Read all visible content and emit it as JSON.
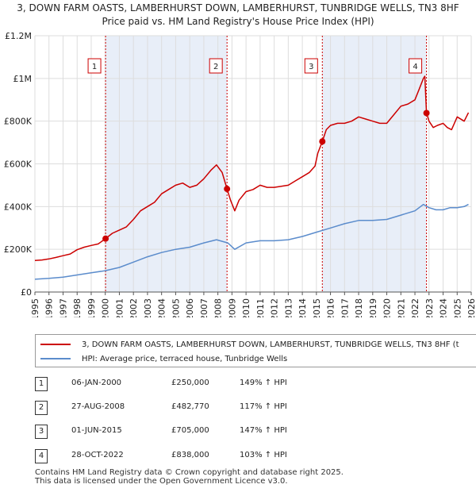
{
  "chart_data": {
    "type": "line",
    "title": "3, DOWN FARM OASTS, LAMBERHURST DOWN, LAMBERHURST, TUNBRIDGE WELLS, TN3 8HF",
    "subtitle": "Price paid vs. HM Land Registry's House Price Index (HPI)",
    "xlabel": "",
    "ylabel": "",
    "xlim": [
      1995,
      2026
    ],
    "ylim": [
      0,
      1200000
    ],
    "x_ticks": [
      1995,
      1996,
      1997,
      1998,
      1999,
      2000,
      2001,
      2002,
      2003,
      2004,
      2005,
      2006,
      2007,
      2008,
      2009,
      2010,
      2011,
      2012,
      2013,
      2014,
      2015,
      2016,
      2017,
      2018,
      2019,
      2020,
      2021,
      2022,
      2023,
      2024,
      2025,
      2026
    ],
    "y_ticks": [
      {
        "value": 0,
        "label": "£0"
      },
      {
        "value": 200000,
        "label": "£200K"
      },
      {
        "value": 400000,
        "label": "£400K"
      },
      {
        "value": 600000,
        "label": "£600K"
      },
      {
        "value": 800000,
        "label": "£800K"
      },
      {
        "value": 1000000,
        "label": "£1M"
      },
      {
        "value": 1200000,
        "label": "£1.2M"
      }
    ],
    "series": [
      {
        "name": "3, DOWN FARM OASTS, LAMBERHURST DOWN, LAMBERHURST, TUNBRIDGE WELLS, TN3 8HF (t",
        "color": "#cc0000",
        "x": [
          1995.0,
          1995.5,
          1996.0,
          1996.5,
          1997.0,
          1997.5,
          1998.0,
          1998.5,
          1999.0,
          1999.5,
          2000.02,
          2000.5,
          2001.0,
          2001.5,
          2002.0,
          2002.5,
          2003.0,
          2003.5,
          2004.0,
          2004.5,
          2005.0,
          2005.5,
          2006.0,
          2006.5,
          2007.0,
          2007.5,
          2007.9,
          2008.3,
          2008.65,
          2008.9,
          2009.2,
          2009.5,
          2010.0,
          2010.5,
          2011.0,
          2011.5,
          2012.0,
          2012.5,
          2013.0,
          2013.5,
          2014.0,
          2014.5,
          2014.9,
          2015.1,
          2015.42,
          2015.7,
          2016.0,
          2016.5,
          2017.0,
          2017.5,
          2018.0,
          2018.5,
          2019.0,
          2019.5,
          2020.0,
          2020.5,
          2021.0,
          2021.5,
          2022.0,
          2022.3,
          2022.6,
          2022.7,
          2022.82,
          2023.0,
          2023.3,
          2023.6,
          2024.0,
          2024.3,
          2024.6,
          2025.0,
          2025.5,
          2025.8
        ],
        "y": [
          148000,
          150000,
          155000,
          162000,
          170000,
          178000,
          198000,
          210000,
          218000,
          225000,
          250000,
          275000,
          290000,
          305000,
          340000,
          380000,
          400000,
          420000,
          460000,
          480000,
          500000,
          510000,
          490000,
          500000,
          530000,
          570000,
          595000,
          560000,
          482770,
          430000,
          380000,
          430000,
          470000,
          480000,
          500000,
          490000,
          490000,
          495000,
          500000,
          520000,
          540000,
          560000,
          590000,
          650000,
          705000,
          760000,
          780000,
          790000,
          790000,
          800000,
          820000,
          810000,
          800000,
          790000,
          790000,
          830000,
          870000,
          880000,
          900000,
          950000,
          1000000,
          1010000,
          838000,
          800000,
          770000,
          780000,
          790000,
          770000,
          760000,
          820000,
          800000,
          840000
        ]
      },
      {
        "name": "HPI: Average price, terraced house, Tunbridge Wells",
        "color": "#5b8ccc",
        "x": [
          1995.0,
          1996.0,
          1997.0,
          1998.0,
          1999.0,
          2000.0,
          2001.0,
          2002.0,
          2003.0,
          2004.0,
          2005.0,
          2006.0,
          2007.0,
          2007.9,
          2008.7,
          2009.2,
          2010.0,
          2011.0,
          2012.0,
          2013.0,
          2014.0,
          2015.0,
          2016.0,
          2017.0,
          2018.0,
          2019.0,
          2020.0,
          2021.0,
          2022.0,
          2022.6,
          2023.0,
          2023.5,
          2024.0,
          2024.5,
          2025.0,
          2025.5,
          2025.8
        ],
        "y": [
          60000,
          64000,
          70000,
          80000,
          90000,
          100000,
          115000,
          140000,
          165000,
          185000,
          200000,
          210000,
          230000,
          245000,
          230000,
          200000,
          230000,
          240000,
          240000,
          245000,
          260000,
          280000,
          300000,
          320000,
          335000,
          335000,
          340000,
          360000,
          380000,
          410000,
          395000,
          385000,
          385000,
          395000,
          395000,
          400000,
          410000
        ]
      }
    ],
    "sale_markers": [
      {
        "label": "1",
        "x": 2000.02,
        "y": 250000
      },
      {
        "label": "2",
        "x": 2008.65,
        "y": 482770
      },
      {
        "label": "3",
        "x": 2015.42,
        "y": 705000
      },
      {
        "label": "4",
        "x": 2022.82,
        "y": 838000
      }
    ],
    "shaded_ranges": [
      [
        2000.02,
        2008.65
      ],
      [
        2015.42,
        2022.82
      ]
    ]
  },
  "legend": {
    "property_label": "3, DOWN FARM OASTS, LAMBERHURST DOWN, LAMBERHURST, TUNBRIDGE WELLS, TN3 8HF (t",
    "hpi_label": "HPI: Average price, terraced house, Tunbridge Wells"
  },
  "sales": [
    {
      "num": "1",
      "date": "06-JAN-2000",
      "price": "£250,000",
      "hpi": "149% ↑ HPI"
    },
    {
      "num": "2",
      "date": "27-AUG-2008",
      "price": "£482,770",
      "hpi": "117% ↑ HPI"
    },
    {
      "num": "3",
      "date": "01-JUN-2015",
      "price": "£705,000",
      "hpi": "147% ↑ HPI"
    },
    {
      "num": "4",
      "date": "28-OCT-2022",
      "price": "£838,000",
      "hpi": "103% ↑ HPI"
    }
  ],
  "footer": {
    "line1": "Contains HM Land Registry data © Crown copyright and database right 2025.",
    "line2": "This data is licensed under the Open Government Licence v3.0."
  },
  "colors": {
    "property": "#cc0000",
    "hpi": "#5b8ccc",
    "shade": "#e8eef8",
    "grid": "#dddddd"
  }
}
